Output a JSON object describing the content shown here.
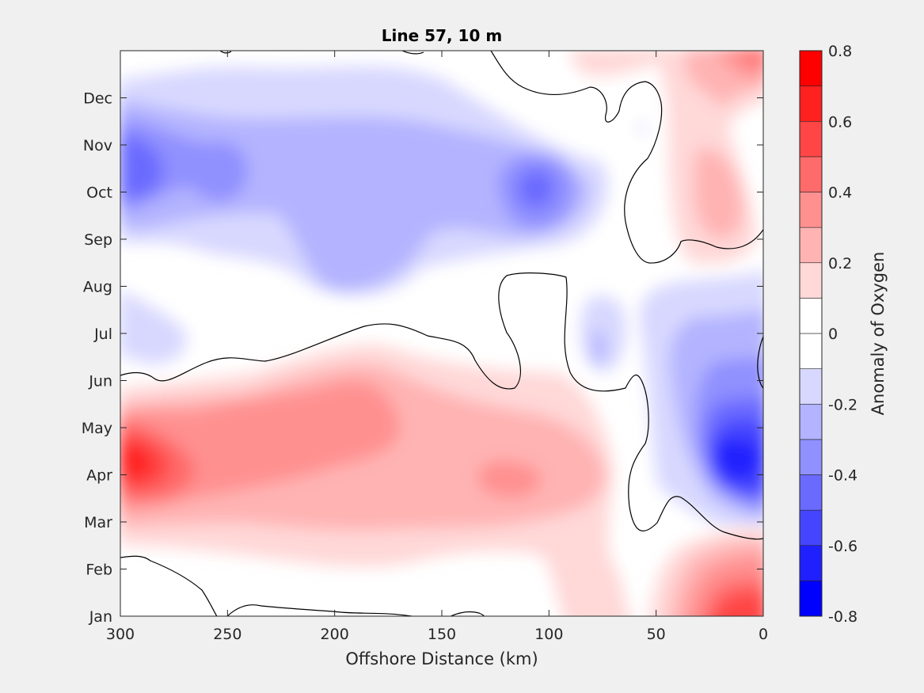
{
  "chart_data": {
    "type": "contour",
    "title": "Line 57, 10 m",
    "xlabel": "Offshore Distance (km)",
    "xlim": [
      300,
      0
    ],
    "xreversed": true,
    "xticks": [
      "300",
      "250",
      "200",
      "150",
      "100",
      "50",
      "0"
    ],
    "y_categories": [
      "Jan",
      "Feb",
      "Mar",
      "Apr",
      "May",
      "Jun",
      "Jul",
      "Aug",
      "Sep",
      "Oct",
      "Nov",
      "Dec"
    ],
    "colorbar": {
      "label": "Anomaly of Oxygen",
      "range": [
        -0.8,
        0.8
      ],
      "ticks": [
        "0.8",
        "0.6",
        "0.4",
        "0.2",
        "0",
        "-0.2",
        "-0.4",
        "-0.6",
        "-0.8"
      ],
      "levels": [
        -0.8,
        -0.7,
        -0.6,
        -0.5,
        -0.4,
        -0.3,
        -0.2,
        -0.1,
        0,
        0.1,
        0.2,
        0.3,
        0.4,
        0.5,
        0.6,
        0.7,
        0.8
      ],
      "colors": [
        "#0000ff",
        "#2020ff",
        "#4545ff",
        "#6a6aff",
        "#9090ff",
        "#b3b3ff",
        "#d8d8ff",
        "#ffffff",
        "#ffffff",
        "#ffd8d8",
        "#ffb3b3",
        "#ff9090",
        "#ff6a6a",
        "#ff4545",
        "#ff2020",
        "#ff0000"
      ]
    },
    "zero_contour": true,
    "features": [
      {
        "kind": "negative",
        "x": [
          300,
          290,
          190,
          110,
          108
        ],
        "month": [
          10.0,
          10.1,
          8.8,
          10.0,
          10.0
        ],
        "peak": -0.4
      },
      {
        "kind": "positive",
        "x": [
          295,
          185,
          120
        ],
        "month": [
          4.0,
          4.8,
          4.0
        ],
        "peak": 0.7
      },
      {
        "kind": "negative",
        "x": [
          18,
          75
        ],
        "month": [
          4.1,
          6.8
        ],
        "peak": -0.7
      },
      {
        "kind": "positive",
        "x": [
          20,
          15,
          5
        ],
        "month": [
          10.0,
          1.5,
          12.8
        ],
        "peak": 0.6
      }
    ]
  }
}
